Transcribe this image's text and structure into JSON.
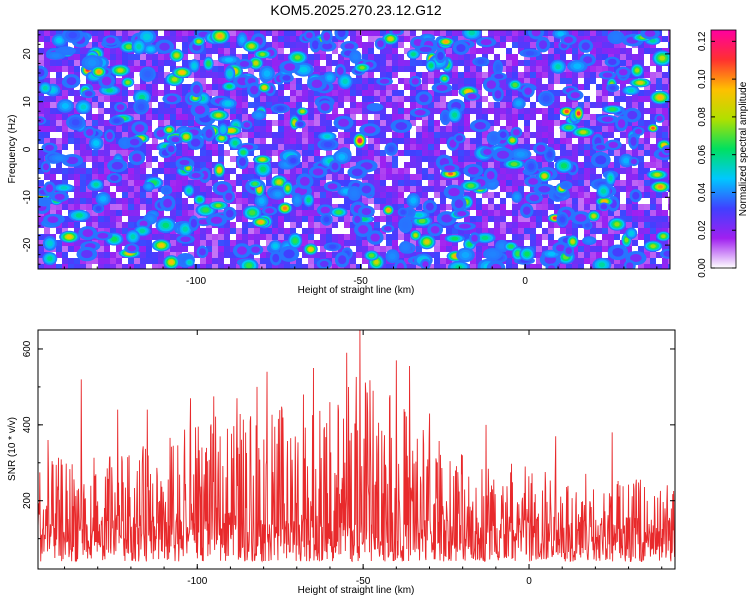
{
  "chart_data": [
    {
      "type": "heatmap",
      "title": "KOM5.2025.270.23.12.G12",
      "xlabel": "Height of straight line (km)",
      "ylabel": "Frequency (Hz)",
      "xlim": [
        -148,
        44
      ],
      "ylim": [
        -25,
        25
      ],
      "x_ticks": [
        -100,
        -50,
        0
      ],
      "x_tick_labels": [
        "-100",
        "-50",
        "0"
      ],
      "y_ticks": [
        -20,
        -10,
        0,
        10,
        20
      ],
      "y_tick_labels": [
        "-20",
        "-10",
        "0",
        "10",
        "20"
      ],
      "colorbar": {
        "label": "Normalized spectral amplitude",
        "range": [
          0.0,
          0.126
        ],
        "ticks": [
          0.0,
          0.02,
          0.04,
          0.06,
          0.08,
          0.1,
          0.12
        ],
        "tick_labels": [
          "0.00",
          "0.02",
          "0.04",
          "0.06",
          "0.08",
          "0.10",
          "0.12"
        ],
        "colors": [
          "#ffffff",
          "#a020f0",
          "#4040ff",
          "#00c8ff",
          "#00e060",
          "#b0e000",
          "#ffc000",
          "#ff3030",
          "#ff00a0"
        ]
      },
      "description_of_values": "dense speckle of amplitudes mostly 0.02-0.06 with sparse peaks up to ~0.12"
    },
    {
      "type": "line",
      "title": "",
      "xlabel": "Height of straight line (km)",
      "ylabel": "SNR (10 * v/v)",
      "xlim": [
        -148,
        44
      ],
      "ylim": [
        20,
        650
      ],
      "x_ticks": [
        -100,
        -50,
        0
      ],
      "x_tick_labels": [
        "-100",
        "-50",
        "0"
      ],
      "y_ticks": [
        200,
        400,
        600
      ],
      "y_tick_labels": [
        "200",
        "400",
        "600"
      ],
      "series_color": "#e8292b",
      "envelope_x": [
        -148,
        -140,
        -130,
        -120,
        -110,
        -100,
        -90,
        -80,
        -70,
        -60,
        -55,
        -50,
        -45,
        -40,
        -35,
        -30,
        -20,
        -10,
        0,
        10,
        20,
        30,
        44
      ],
      "envelope_y": [
        300,
        320,
        320,
        330,
        370,
        400,
        440,
        470,
        440,
        450,
        500,
        560,
        500,
        470,
        430,
        380,
        330,
        310,
        290,
        280,
        270,
        260,
        250
      ],
      "peaks": [
        {
          "x": -51,
          "y": 650
        },
        {
          "x": -55,
          "y": 590
        },
        {
          "x": -40,
          "y": 570
        },
        {
          "x": -36,
          "y": 555
        },
        {
          "x": -79,
          "y": 540
        },
        {
          "x": -65,
          "y": 550
        },
        {
          "x": -135,
          "y": 520
        },
        {
          "x": -82,
          "y": 500
        },
        {
          "x": -47,
          "y": 490
        },
        {
          "x": -95,
          "y": 475
        },
        {
          "x": -102,
          "y": 470
        },
        {
          "x": -88,
          "y": 470
        },
        {
          "x": -68,
          "y": 480
        },
        {
          "x": -124,
          "y": 440
        },
        {
          "x": -115,
          "y": 440
        },
        {
          "x": -60,
          "y": 460
        },
        {
          "x": -42,
          "y": 470
        },
        {
          "x": -30,
          "y": 430
        },
        {
          "x": -13,
          "y": 400
        },
        {
          "x": 25,
          "y": 380
        },
        {
          "x": 8,
          "y": 370
        },
        {
          "x": -145,
          "y": 360
        }
      ]
    }
  ]
}
